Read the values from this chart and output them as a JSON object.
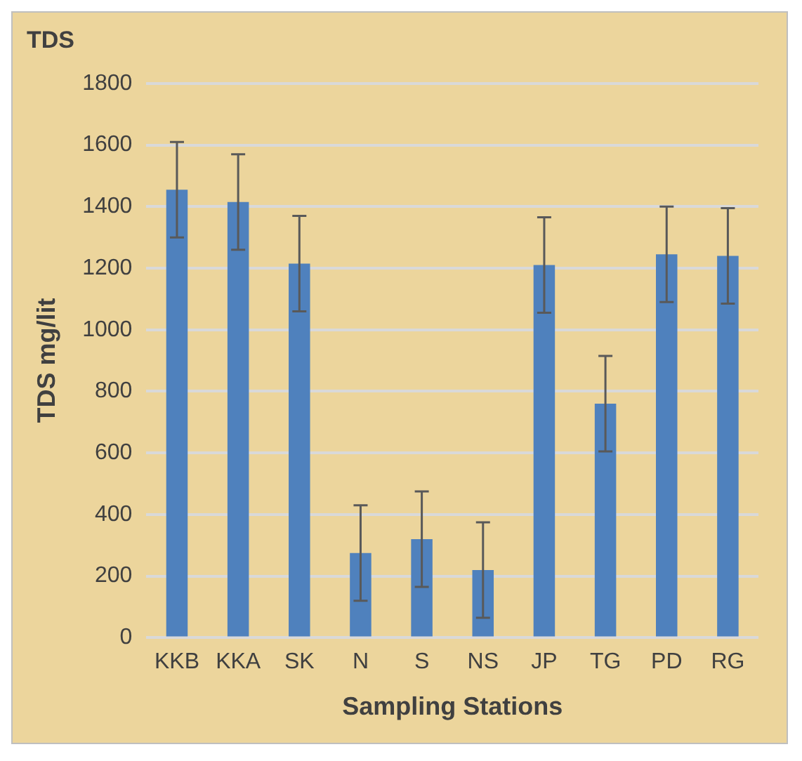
{
  "chart_data": {
    "type": "bar",
    "title": "TDS",
    "xlabel": "Sampling Stations",
    "ylabel": "TDS mg/lit",
    "categories": [
      "KKB",
      "KKA",
      "SK",
      "N",
      "S",
      "NS",
      "JP",
      "TG",
      "PD",
      "RG"
    ],
    "values": [
      1455,
      1415,
      1215,
      275,
      320,
      220,
      1210,
      760,
      1245,
      1240
    ],
    "errors": [
      155,
      155,
      155,
      155,
      155,
      155,
      155,
      155,
      155,
      155
    ],
    "color": "#4f81bd",
    "ylim": [
      0,
      1800
    ],
    "yticks": [
      0,
      200,
      400,
      600,
      800,
      1000,
      1200,
      1400,
      1600,
      1800
    ],
    "grid": "y",
    "legend": false
  }
}
